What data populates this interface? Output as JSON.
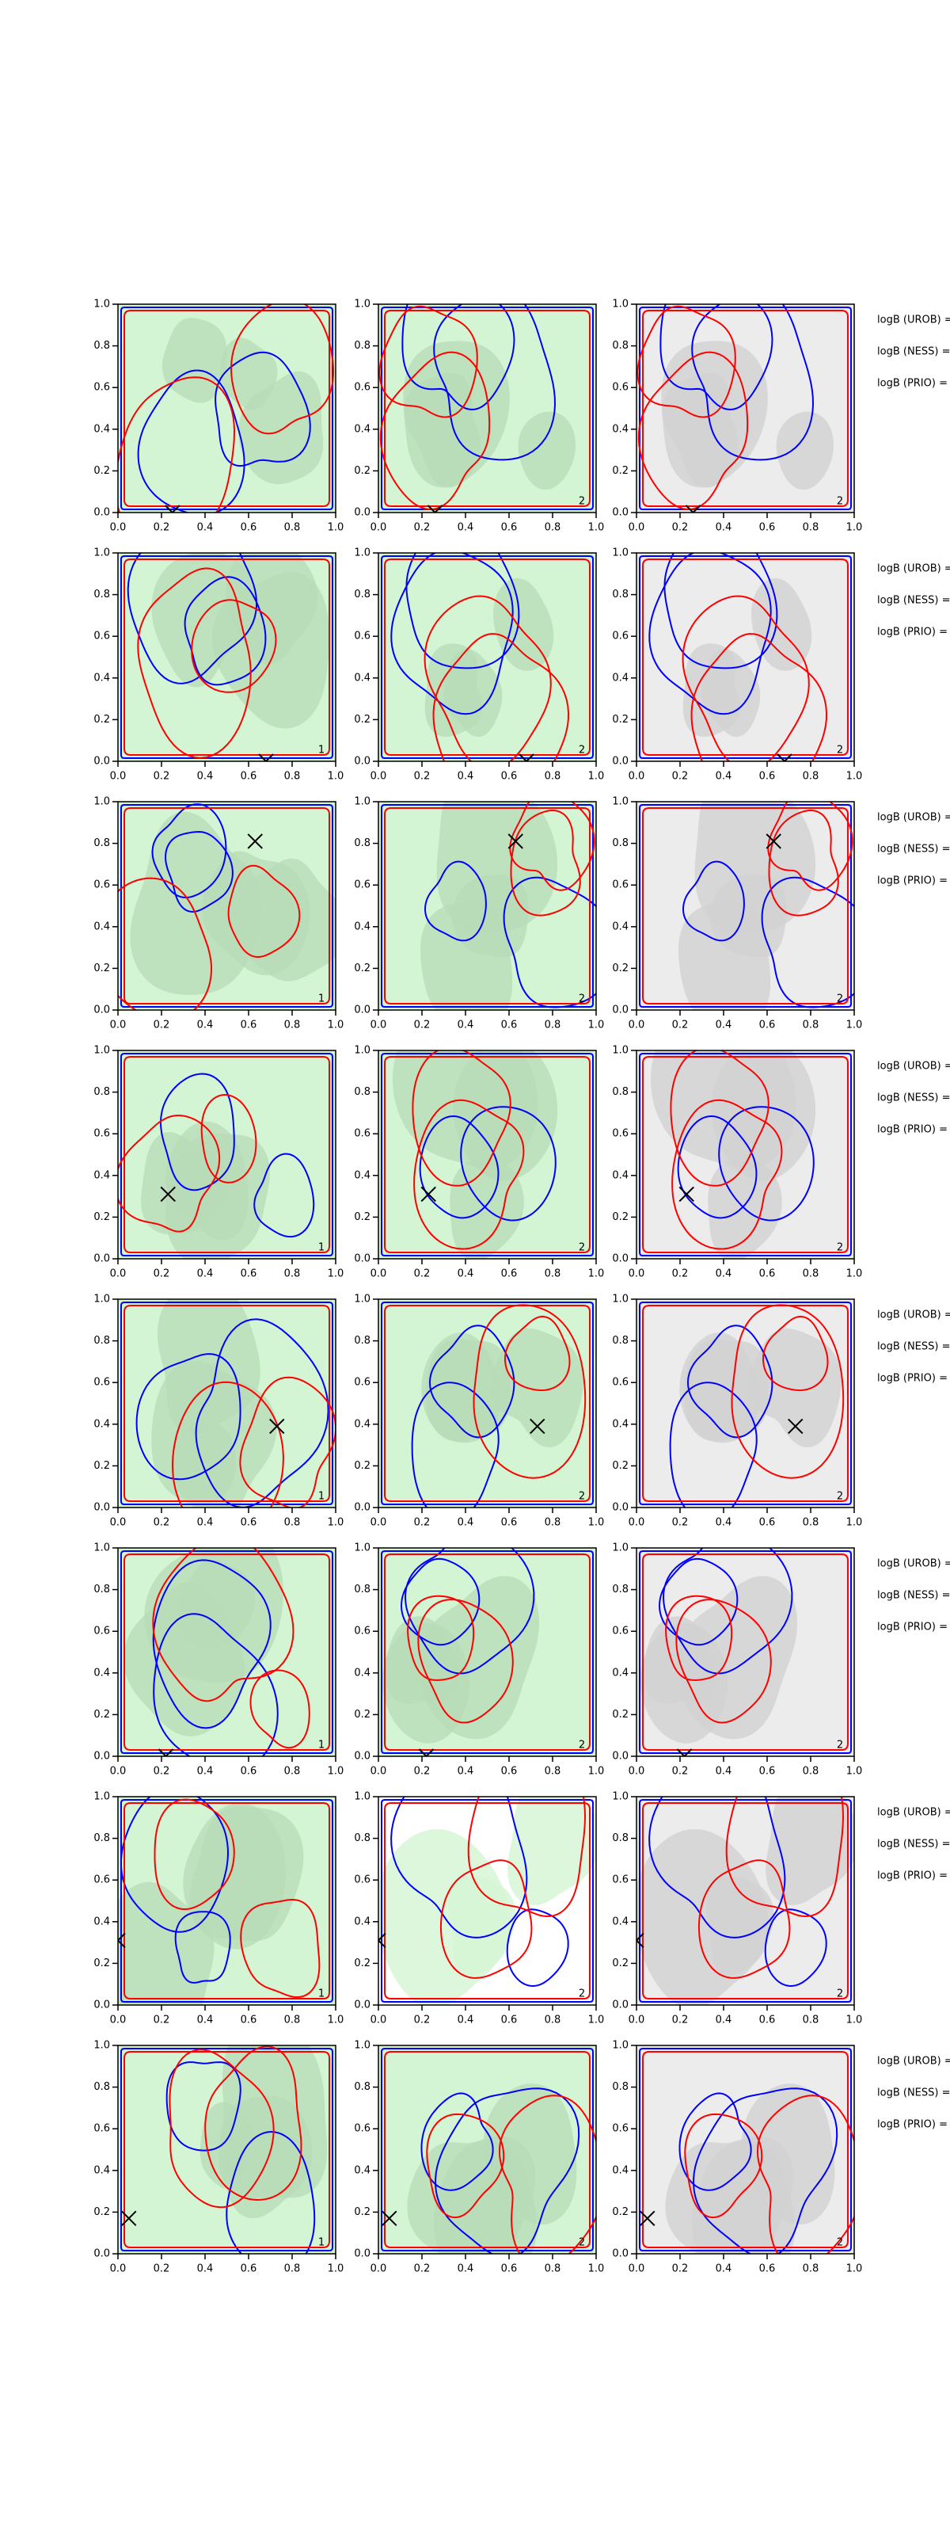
{
  "chart_data": [
    {
      "type": "contour",
      "xlim": [
        0,
        1
      ],
      "ylim": [
        0,
        1
      ],
      "xticks": [
        {
          "value": 0,
          "label": "0.0"
        },
        0.2,
        0.4,
        0.6,
        0.8,
        {
          "value": 1,
          "label": "1.0"
        }
      ],
      "yticks": [
        {
          "value": 0,
          "label": "0.0"
        },
        0.2,
        0.4,
        0.6,
        0.8,
        {
          "value": 1,
          "label": "1.0"
        }
      ],
      "background": "#d4f5d4",
      "region_color": "#b8dcb8",
      "line_colors": [
        "#0000ff",
        "#ff0000"
      ],
      "marker": {
        "x": 0.25,
        "y": 0
      }
    },
    {
      "type": "contour",
      "xlim": [
        0,
        1
      ],
      "ylim": [
        0,
        1
      ],
      "xticks": [
        {
          "value": 0,
          "label": "0.0"
        },
        0.2,
        0.4,
        0.6,
        0.8,
        {
          "value": 1,
          "label": "1.0"
        }
      ],
      "yticks": [
        {
          "value": 0,
          "label": "0.0"
        },
        0.2,
        0.4,
        0.6,
        0.8,
        {
          "value": 1,
          "label": "1.0"
        }
      ],
      "background": "#d4f5d4",
      "region_color": "#b8dcb8",
      "line_colors": [
        "#0000ff",
        "#ff0000"
      ],
      "marker": {
        "x": 0.26,
        "y": 0
      },
      "panel_label": "2"
    },
    {
      "type": "contour",
      "xlim": [
        0,
        1
      ],
      "ylim": [
        0,
        1
      ],
      "xticks": [
        {
          "value": 0,
          "label": "0.0"
        },
        0.2,
        0.4,
        0.6,
        0.8,
        {
          "value": 1,
          "label": "1.0"
        }
      ],
      "yticks": [
        {
          "value": 0,
          "label": "0.0"
        },
        0.2,
        0.4,
        0.6,
        0.8,
        {
          "value": 1,
          "label": "1.0"
        }
      ],
      "background": "#ececec",
      "region_color": "#d2d2d2",
      "line_colors": [
        "#0000ff",
        "#ff0000"
      ],
      "marker": {
        "x": 0.26,
        "y": 0
      },
      "panel_label": "2",
      "annotations": [
        "logB (UROB) =",
        "logB (NESS) =",
        "logB (PRIO) ="
      ]
    },
    {
      "type": "contour",
      "xlim": [
        0,
        1
      ],
      "ylim": [
        0,
        1
      ],
      "xticks": [
        {
          "value": 0,
          "label": "0.0"
        },
        0.2,
        0.4,
        0.6,
        0.8,
        {
          "value": 1,
          "label": "1.0"
        }
      ],
      "yticks": [
        {
          "value": 0,
          "label": "0.0"
        },
        0.2,
        0.4,
        0.6,
        0.8,
        {
          "value": 1,
          "label": "1.0"
        }
      ],
      "background": "#d4f5d4",
      "region_color": "#b8dcb8",
      "line_colors": [
        "#0000ff",
        "#ff0000"
      ],
      "marker": {
        "x": 0.68,
        "y": 0
      },
      "panel_label": "1"
    },
    {
      "type": "contour",
      "xlim": [
        0,
        1
      ],
      "ylim": [
        0,
        1
      ],
      "xticks": [
        {
          "value": 0,
          "label": "0.0"
        },
        0.2,
        0.4,
        0.6,
        0.8,
        {
          "value": 1,
          "label": "1.0"
        }
      ],
      "yticks": [
        {
          "value": 0,
          "label": "0.0"
        },
        0.2,
        0.4,
        0.6,
        0.8,
        {
          "value": 1,
          "label": "1.0"
        }
      ],
      "background": "#d4f5d4",
      "region_color": "#b8dcb8",
      "line_colors": [
        "#0000ff",
        "#ff0000"
      ],
      "marker": {
        "x": 0.68,
        "y": 0
      },
      "panel_label": "2"
    },
    {
      "type": "contour",
      "xlim": [
        0,
        1
      ],
      "ylim": [
        0,
        1
      ],
      "xticks": [
        {
          "value": 0,
          "label": "0.0"
        },
        0.2,
        0.4,
        0.6,
        0.8,
        {
          "value": 1,
          "label": "1.0"
        }
      ],
      "yticks": [
        {
          "value": 0,
          "label": "0.0"
        },
        0.2,
        0.4,
        0.6,
        0.8,
        {
          "value": 1,
          "label": "1.0"
        }
      ],
      "background": "#ececec",
      "region_color": "#d2d2d2",
      "line_colors": [
        "#0000ff",
        "#ff0000"
      ],
      "marker": {
        "x": 0.68,
        "y": 0
      },
      "panel_label": "2",
      "annotations": [
        "logB (UROB) =",
        "logB (NESS) =",
        "logB (PRIO) ="
      ]
    },
    {
      "type": "contour",
      "xlim": [
        0,
        1
      ],
      "ylim": [
        0,
        1
      ],
      "xticks": [
        {
          "value": 0,
          "label": "0.0"
        },
        0.2,
        0.4,
        0.6,
        0.8,
        {
          "value": 1,
          "label": "1.0"
        }
      ],
      "yticks": [
        {
          "value": 0,
          "label": "0.0"
        },
        0.2,
        0.4,
        0.6,
        0.8,
        {
          "value": 1,
          "label": "1.0"
        }
      ],
      "background": "#d4f5d4",
      "region_color": "#b8dcb8",
      "line_colors": [
        "#0000ff",
        "#ff0000"
      ],
      "marker": {
        "x": 0.63,
        "y": 0.81
      },
      "panel_label": "1"
    },
    {
      "type": "contour",
      "xlim": [
        0,
        1
      ],
      "ylim": [
        0,
        1
      ],
      "xticks": [
        {
          "value": 0,
          "label": "0.0"
        },
        0.2,
        0.4,
        0.6,
        0.8,
        {
          "value": 1,
          "label": "1.0"
        }
      ],
      "yticks": [
        {
          "value": 0,
          "label": "0.0"
        },
        0.2,
        0.4,
        0.6,
        0.8,
        {
          "value": 1,
          "label": "1.0"
        }
      ],
      "background": "#d4f5d4",
      "region_color": "#b8dcb8",
      "line_colors": [
        "#0000ff",
        "#ff0000"
      ],
      "marker": {
        "x": 0.63,
        "y": 0.81
      },
      "panel_label": "2"
    },
    {
      "type": "contour",
      "xlim": [
        0,
        1
      ],
      "ylim": [
        0,
        1
      ],
      "xticks": [
        {
          "value": 0,
          "label": "0.0"
        },
        0.2,
        0.4,
        0.6,
        0.8,
        {
          "value": 1,
          "label": "1.0"
        }
      ],
      "yticks": [
        {
          "value": 0,
          "label": "0.0"
        },
        0.2,
        0.4,
        0.6,
        0.8,
        {
          "value": 1,
          "label": "1.0"
        }
      ],
      "background": "#ececec",
      "region_color": "#d2d2d2",
      "line_colors": [
        "#0000ff",
        "#ff0000"
      ],
      "marker": {
        "x": 0.63,
        "y": 0.81
      },
      "panel_label": "2",
      "annotations": [
        "logB (UROB) =",
        "logB (NESS) =",
        "logB (PRIO) ="
      ]
    },
    {
      "type": "contour",
      "xlim": [
        0,
        1
      ],
      "ylim": [
        0,
        1
      ],
      "xticks": [
        {
          "value": 0,
          "label": "0.0"
        },
        0.2,
        0.4,
        0.6,
        0.8,
        {
          "value": 1,
          "label": "1.0"
        }
      ],
      "yticks": [
        {
          "value": 0,
          "label": "0.0"
        },
        0.2,
        0.4,
        0.6,
        0.8,
        {
          "value": 1,
          "label": "1.0"
        }
      ],
      "background": "#d4f5d4",
      "region_color": "#b8dcb8",
      "line_colors": [
        "#0000ff",
        "#ff0000"
      ],
      "marker": {
        "x": 0.23,
        "y": 0.31
      },
      "panel_label": "1"
    },
    {
      "type": "contour",
      "xlim": [
        0,
        1
      ],
      "ylim": [
        0,
        1
      ],
      "xticks": [
        {
          "value": 0,
          "label": "0.0"
        },
        0.2,
        0.4,
        0.6,
        0.8,
        {
          "value": 1,
          "label": "1.0"
        }
      ],
      "yticks": [
        {
          "value": 0,
          "label": "0.0"
        },
        0.2,
        0.4,
        0.6,
        0.8,
        {
          "value": 1,
          "label": "1.0"
        }
      ],
      "background": "#d4f5d4",
      "region_color": "#b8dcb8",
      "line_colors": [
        "#0000ff",
        "#ff0000"
      ],
      "marker": {
        "x": 0.23,
        "y": 0.31
      },
      "panel_label": "2"
    },
    {
      "type": "contour",
      "xlim": [
        0,
        1
      ],
      "ylim": [
        0,
        1
      ],
      "xticks": [
        {
          "value": 0,
          "label": "0.0"
        },
        0.2,
        0.4,
        0.6,
        0.8,
        {
          "value": 1,
          "label": "1.0"
        }
      ],
      "yticks": [
        {
          "value": 0,
          "label": "0.0"
        },
        0.2,
        0.4,
        0.6,
        0.8,
        {
          "value": 1,
          "label": "1.0"
        }
      ],
      "background": "#ececec",
      "region_color": "#d2d2d2",
      "line_colors": [
        "#0000ff",
        "#ff0000"
      ],
      "marker": {
        "x": 0.23,
        "y": 0.31
      },
      "panel_label": "2",
      "annotations": [
        "logB (UROB) =",
        "logB (NESS) =",
        "logB (PRIO) ="
      ]
    },
    {
      "type": "contour",
      "xlim": [
        0,
        1
      ],
      "ylim": [
        0,
        1
      ],
      "xticks": [
        {
          "value": 0,
          "label": "0.0"
        },
        0.2,
        0.4,
        0.6,
        0.8,
        {
          "value": 1,
          "label": "1.0"
        }
      ],
      "yticks": [
        {
          "value": 0,
          "label": "0.0"
        },
        0.2,
        0.4,
        0.6,
        0.8,
        {
          "value": 1,
          "label": "1.0"
        }
      ],
      "background": "#d4f5d4",
      "region_color": "#b8dcb8",
      "line_colors": [
        "#0000ff",
        "#ff0000"
      ],
      "marker": {
        "x": 0.73,
        "y": 0.39
      },
      "panel_label": "1"
    },
    {
      "type": "contour",
      "xlim": [
        0,
        1
      ],
      "ylim": [
        0,
        1
      ],
      "xticks": [
        {
          "value": 0,
          "label": "0.0"
        },
        0.2,
        0.4,
        0.6,
        0.8,
        {
          "value": 1,
          "label": "1.0"
        }
      ],
      "yticks": [
        {
          "value": 0,
          "label": "0.0"
        },
        0.2,
        0.4,
        0.6,
        0.8,
        {
          "value": 1,
          "label": "1.0"
        }
      ],
      "background": "#d4f5d4",
      "region_color": "#b8dcb8",
      "line_colors": [
        "#0000ff",
        "#ff0000"
      ],
      "marker": {
        "x": 0.73,
        "y": 0.39
      },
      "panel_label": "2"
    },
    {
      "type": "contour",
      "xlim": [
        0,
        1
      ],
      "ylim": [
        0,
        1
      ],
      "xticks": [
        {
          "value": 0,
          "label": "0.0"
        },
        0.2,
        0.4,
        0.6,
        0.8,
        {
          "value": 1,
          "label": "1.0"
        }
      ],
      "yticks": [
        {
          "value": 0,
          "label": "0.0"
        },
        0.2,
        0.4,
        0.6,
        0.8,
        {
          "value": 1,
          "label": "1.0"
        }
      ],
      "background": "#ececec",
      "region_color": "#d2d2d2",
      "line_colors": [
        "#0000ff",
        "#ff0000"
      ],
      "marker": {
        "x": 0.73,
        "y": 0.39
      },
      "panel_label": "2",
      "annotations": [
        "logB (UROB) =",
        "logB (NESS) =",
        "logB (PRIO) ="
      ]
    },
    {
      "type": "contour",
      "xlim": [
        0,
        1
      ],
      "ylim": [
        0,
        1
      ],
      "xticks": [
        {
          "value": 0,
          "label": "0.0"
        },
        0.2,
        0.4,
        0.6,
        0.8,
        {
          "value": 1,
          "label": "1.0"
        }
      ],
      "yticks": [
        {
          "value": 0,
          "label": "0.0"
        },
        0.2,
        0.4,
        0.6,
        0.8,
        {
          "value": 1,
          "label": "1.0"
        }
      ],
      "background": "#d4f5d4",
      "region_color": "#b8dcb8",
      "line_colors": [
        "#0000ff",
        "#ff0000"
      ],
      "marker": {
        "x": 0.22,
        "y": 0
      },
      "panel_label": "1"
    },
    {
      "type": "contour",
      "xlim": [
        0,
        1
      ],
      "ylim": [
        0,
        1
      ],
      "xticks": [
        {
          "value": 0,
          "label": "0.0"
        },
        0.2,
        0.4,
        0.6,
        0.8,
        {
          "value": 1,
          "label": "1.0"
        }
      ],
      "yticks": [
        {
          "value": 0,
          "label": "0.0"
        },
        0.2,
        0.4,
        0.6,
        0.8,
        {
          "value": 1,
          "label": "1.0"
        }
      ],
      "background": "#d4f5d4",
      "region_color": "#b8dcb8",
      "line_colors": [
        "#0000ff",
        "#ff0000"
      ],
      "marker": {
        "x": 0.22,
        "y": 0
      },
      "panel_label": "2"
    },
    {
      "type": "contour",
      "xlim": [
        0,
        1
      ],
      "ylim": [
        0,
        1
      ],
      "xticks": [
        {
          "value": 0,
          "label": "0.0"
        },
        0.2,
        0.4,
        0.6,
        0.8,
        {
          "value": 1,
          "label": "1.0"
        }
      ],
      "yticks": [
        {
          "value": 0,
          "label": "0.0"
        },
        0.2,
        0.4,
        0.6,
        0.8,
        {
          "value": 1,
          "label": "1.0"
        }
      ],
      "background": "#ececec",
      "region_color": "#d2d2d2",
      "line_colors": [
        "#0000ff",
        "#ff0000"
      ],
      "marker": {
        "x": 0.22,
        "y": 0
      },
      "panel_label": "2",
      "annotations": [
        "logB (UROB) =",
        "logB (NESS) =",
        "logB (PRIO) ="
      ]
    },
    {
      "type": "contour",
      "xlim": [
        0,
        1
      ],
      "ylim": [
        0,
        1
      ],
      "xticks": [
        {
          "value": 0,
          "label": "0.0"
        },
        0.2,
        0.4,
        0.6,
        0.8,
        {
          "value": 1,
          "label": "1.0"
        }
      ],
      "yticks": [
        {
          "value": 0,
          "label": "0.0"
        },
        0.2,
        0.4,
        0.6,
        0.8,
        {
          "value": 1,
          "label": "1.0"
        }
      ],
      "background": "#d4f5d4",
      "region_color": "#b8dcb8",
      "line_colors": [
        "#0000ff",
        "#ff0000"
      ],
      "marker": {
        "x": 0,
        "y": 0.31
      },
      "panel_label": "1"
    },
    {
      "type": "contour",
      "xlim": [
        0,
        1
      ],
      "ylim": [
        0,
        1
      ],
      "xticks": [
        {
          "value": 0,
          "label": "0.0"
        },
        0.2,
        0.4,
        0.6,
        0.8,
        {
          "value": 1,
          "label": "1.0"
        }
      ],
      "yticks": [
        {
          "value": 0,
          "label": "0.0"
        },
        0.2,
        0.4,
        0.6,
        0.8,
        {
          "value": 1,
          "label": "1.0"
        }
      ],
      "background": "#ffffff",
      "region_color": "#d4f5d4",
      "line_colors": [
        "#0000ff",
        "#ff0000"
      ],
      "marker": {
        "x": 0,
        "y": 0.31
      },
      "panel_label": "2"
    },
    {
      "type": "contour",
      "xlim": [
        0,
        1
      ],
      "ylim": [
        0,
        1
      ],
      "xticks": [
        {
          "value": 0,
          "label": "0.0"
        },
        0.2,
        0.4,
        0.6,
        0.8,
        {
          "value": 1,
          "label": "1.0"
        }
      ],
      "yticks": [
        {
          "value": 0,
          "label": "0.0"
        },
        0.2,
        0.4,
        0.6,
        0.8,
        {
          "value": 1,
          "label": "1.0"
        }
      ],
      "background": "#ececec",
      "region_color": "#d2d2d2",
      "line_colors": [
        "#0000ff",
        "#ff0000"
      ],
      "marker": {
        "x": 0,
        "y": 0.31
      },
      "panel_label": "2",
      "annotations": [
        "logB (UROB) =",
        "logB (NESS) =",
        "logB (PRIO) ="
      ]
    },
    {
      "type": "contour",
      "xlim": [
        0,
        1
      ],
      "ylim": [
        0,
        1
      ],
      "xticks": [
        {
          "value": 0,
          "label": "0.0"
        },
        0.2,
        0.4,
        0.6,
        0.8,
        {
          "value": 1,
          "label": "1.0"
        }
      ],
      "yticks": [
        {
          "value": 0,
          "label": "0.0"
        },
        0.2,
        0.4,
        0.6,
        0.8,
        {
          "value": 1,
          "label": "1.0"
        }
      ],
      "background": "#d4f5d4",
      "region_color": "#b8dcb8",
      "line_colors": [
        "#0000ff",
        "#ff0000"
      ],
      "marker": {
        "x": 0.05,
        "y": 0.17
      },
      "panel_label": "1"
    },
    {
      "type": "contour",
      "xlim": [
        0,
        1
      ],
      "ylim": [
        0,
        1
      ],
      "xticks": [
        {
          "value": 0,
          "label": "0.0"
        },
        0.2,
        0.4,
        0.6,
        0.8,
        {
          "value": 1,
          "label": "1.0"
        }
      ],
      "yticks": [
        {
          "value": 0,
          "label": "0.0"
        },
        0.2,
        0.4,
        0.6,
        0.8,
        {
          "value": 1,
          "label": "1.0"
        }
      ],
      "background": "#d4f5d4",
      "region_color": "#b8dcb8",
      "line_colors": [
        "#0000ff",
        "#ff0000"
      ],
      "marker": {
        "x": 0.05,
        "y": 0.17
      },
      "panel_label": "2"
    },
    {
      "type": "contour",
      "xlim": [
        0,
        1
      ],
      "ylim": [
        0,
        1
      ],
      "xticks": [
        {
          "value": 0,
          "label": "0.0"
        },
        0.2,
        0.4,
        0.6,
        0.8,
        {
          "value": 1,
          "label": "1.0"
        }
      ],
      "yticks": [
        {
          "value": 0,
          "label": "0.0"
        },
        0.2,
        0.4,
        0.6,
        0.8,
        {
          "value": 1,
          "label": "1.0"
        }
      ],
      "background": "#ececec",
      "region_color": "#d2d2d2",
      "line_colors": [
        "#0000ff",
        "#ff0000"
      ],
      "marker": {
        "x": 0.05,
        "y": 0.17
      },
      "panel_label": "2",
      "annotations": [
        "logB (UROB) =",
        "logB (NESS) =",
        "logB (PRIO) ="
      ]
    }
  ]
}
